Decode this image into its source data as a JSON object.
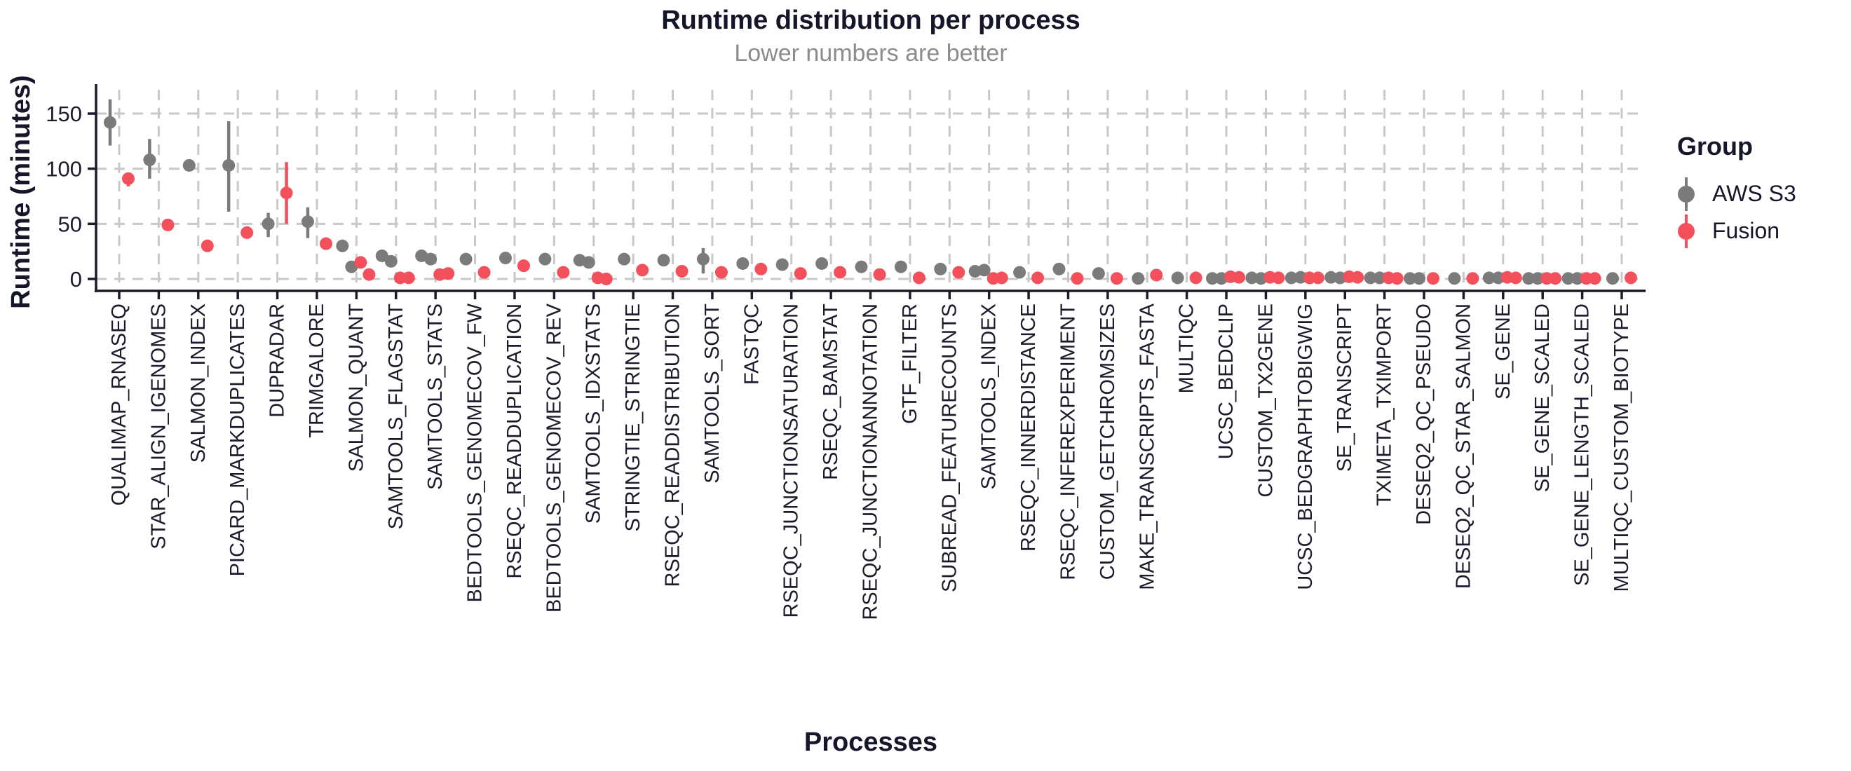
{
  "chart_data": {
    "type": "scatter",
    "title": "Runtime distribution per process",
    "subtitle": "Lower numbers are better",
    "xlabel": "Processes",
    "ylabel": "Runtime (minutes)",
    "y_ticks": [
      0,
      50,
      100,
      150
    ],
    "ylim": [
      0,
      170
    ],
    "grid": "dashed major gridlines horizontal and per-category vertical",
    "legend": {
      "title": "Group",
      "position": "right",
      "entries": [
        {
          "label": "AWS S3",
          "color": "#7b7b7b"
        },
        {
          "label": "Fusion",
          "color": "#f4505c"
        }
      ]
    },
    "series_colors": {
      "aws_s3": "#7b7b7b",
      "fusion": "#f4505c"
    },
    "point_unit": "minutes",
    "processes": [
      {
        "name": "QUALIMAP_RNASEQ",
        "aws_s3": [
          {
            "v": 142,
            "lo": 121,
            "hi": 163
          }
        ],
        "fusion": [
          {
            "v": 91,
            "lo": 84,
            "hi": 96
          }
        ]
      },
      {
        "name": "STAR_ALIGN_IGENOMES",
        "aws_s3": [
          {
            "v": 108,
            "lo": 91,
            "hi": 127
          }
        ],
        "fusion": [
          {
            "v": 49
          }
        ]
      },
      {
        "name": "SALMON_INDEX",
        "aws_s3": [
          {
            "v": 103
          }
        ],
        "fusion": [
          {
            "v": 30
          }
        ]
      },
      {
        "name": "PICARD_MARKDUPLICATES",
        "aws_s3": [
          {
            "v": 103,
            "lo": 61,
            "hi": 143
          }
        ],
        "fusion": [
          {
            "v": 42
          }
        ]
      },
      {
        "name": "DUPRADAR",
        "aws_s3": [
          {
            "v": 50,
            "lo": 38,
            "hi": 60
          }
        ],
        "fusion": [
          {
            "v": 78,
            "lo": 50,
            "hi": 106
          }
        ]
      },
      {
        "name": "TRIMGALORE",
        "aws_s3": [
          {
            "v": 52,
            "lo": 37,
            "hi": 65
          }
        ],
        "fusion": [
          {
            "v": 32
          }
        ]
      },
      {
        "name": "SALMON_QUANT",
        "aws_s3": [
          {
            "v": 30
          },
          {
            "v": 11
          }
        ],
        "fusion": [
          {
            "v": 15
          },
          {
            "v": 4
          }
        ]
      },
      {
        "name": "SAMTOOLS_FLAGSTAT",
        "aws_s3": [
          {
            "v": 21
          },
          {
            "v": 16
          }
        ],
        "fusion": [
          {
            "v": 1
          },
          {
            "v": 1
          }
        ]
      },
      {
        "name": "SAMTOOLS_STATS",
        "aws_s3": [
          {
            "v": 21,
            "lo": 16,
            "hi": 26
          },
          {
            "v": 18
          }
        ],
        "fusion": [
          {
            "v": 4
          },
          {
            "v": 5
          }
        ]
      },
      {
        "name": "BEDTOOLS_GENOMECOV_FW",
        "aws_s3": [
          {
            "v": 18
          }
        ],
        "fusion": [
          {
            "v": 6
          }
        ]
      },
      {
        "name": "RSEQC_READDUPLICATION",
        "aws_s3": [
          {
            "v": 19
          }
        ],
        "fusion": [
          {
            "v": 12
          }
        ]
      },
      {
        "name": "BEDTOOLS_GENOMECOV_REV",
        "aws_s3": [
          {
            "v": 18
          }
        ],
        "fusion": [
          {
            "v": 6
          }
        ]
      },
      {
        "name": "SAMTOOLS_IDXSTATS",
        "aws_s3": [
          {
            "v": 17
          },
          {
            "v": 15
          }
        ],
        "fusion": [
          {
            "v": 1
          },
          {
            "v": 0
          }
        ]
      },
      {
        "name": "STRINGTIE_STRINGTIE",
        "aws_s3": [
          {
            "v": 18
          }
        ],
        "fusion": [
          {
            "v": 8
          }
        ]
      },
      {
        "name": "RSEQC_READDISTRIBUTION",
        "aws_s3": [
          {
            "v": 17
          }
        ],
        "fusion": [
          {
            "v": 7
          }
        ]
      },
      {
        "name": "SAMTOOLS_SORT",
        "aws_s3": [
          {
            "v": 18,
            "lo": 5,
            "hi": 28
          }
        ],
        "fusion": [
          {
            "v": 6
          }
        ]
      },
      {
        "name": "FASTQC",
        "aws_s3": [
          {
            "v": 14
          }
        ],
        "fusion": [
          {
            "v": 9
          }
        ]
      },
      {
        "name": "RSEQC_JUNCTIONSATURATION",
        "aws_s3": [
          {
            "v": 13
          }
        ],
        "fusion": [
          {
            "v": 5
          }
        ]
      },
      {
        "name": "RSEQC_BAMSTAT",
        "aws_s3": [
          {
            "v": 14
          }
        ],
        "fusion": [
          {
            "v": 6
          }
        ]
      },
      {
        "name": "RSEQC_JUNCTIONANNOTATION",
        "aws_s3": [
          {
            "v": 11
          }
        ],
        "fusion": [
          {
            "v": 4
          }
        ]
      },
      {
        "name": "GTF_FILTER",
        "aws_s3": [
          {
            "v": 11
          }
        ],
        "fusion": [
          {
            "v": 1
          }
        ]
      },
      {
        "name": "SUBREAD_FEATURECOUNTS",
        "aws_s3": [
          {
            "v": 9
          }
        ],
        "fusion": [
          {
            "v": 6
          }
        ]
      },
      {
        "name": "SAMTOOLS_INDEX",
        "aws_s3": [
          {
            "v": 7
          },
          {
            "v": 8
          }
        ],
        "fusion": [
          {
            "v": 0.5
          },
          {
            "v": 1
          }
        ]
      },
      {
        "name": "RSEQC_INNERDISTANCE",
        "aws_s3": [
          {
            "v": 6
          }
        ],
        "fusion": [
          {
            "v": 1
          }
        ]
      },
      {
        "name": "RSEQC_INFEREXPERIMENT",
        "aws_s3": [
          {
            "v": 9
          }
        ],
        "fusion": [
          {
            "v": 0.5
          }
        ]
      },
      {
        "name": "CUSTOM_GETCHROMSIZES",
        "aws_s3": [
          {
            "v": 5
          }
        ],
        "fusion": [
          {
            "v": 0.5
          }
        ]
      },
      {
        "name": "MAKE_TRANSCRIPTS_FASTA",
        "aws_s3": [
          {
            "v": 0.5
          }
        ],
        "fusion": [
          {
            "v": 3.5
          }
        ]
      },
      {
        "name": "MULTIQC",
        "aws_s3": [
          {
            "v": 1
          }
        ],
        "fusion": [
          {
            "v": 1
          }
        ]
      },
      {
        "name": "UCSC_BEDCLIP",
        "aws_s3": [
          {
            "v": 0.5
          },
          {
            "v": 0.5
          }
        ],
        "fusion": [
          {
            "v": 2
          },
          {
            "v": 1.5
          }
        ]
      },
      {
        "name": "CUSTOM_TX2GENE",
        "aws_s3": [
          {
            "v": 1
          },
          {
            "v": 0.5
          }
        ],
        "fusion": [
          {
            "v": 1.5
          },
          {
            "v": 1
          }
        ]
      },
      {
        "name": "UCSC_BEDGRAPHTOBIGWIG",
        "aws_s3": [
          {
            "v": 1
          },
          {
            "v": 1.5
          }
        ],
        "fusion": [
          {
            "v": 1
          },
          {
            "v": 1
          }
        ]
      },
      {
        "name": "SE_TRANSCRIPT",
        "aws_s3": [
          {
            "v": 1.5
          },
          {
            "v": 1
          }
        ],
        "fusion": [
          {
            "v": 2
          },
          {
            "v": 1.5
          }
        ]
      },
      {
        "name": "TXIMETA_TXIMPORT",
        "aws_s3": [
          {
            "v": 1
          },
          {
            "v": 1
          }
        ],
        "fusion": [
          {
            "v": 1
          },
          {
            "v": 0.5
          }
        ]
      },
      {
        "name": "DESEQ2_QC_PSEUDO",
        "aws_s3": [
          {
            "v": 0.5
          },
          {
            "v": 0.5
          }
        ],
        "fusion": [
          {
            "v": 0.5
          }
        ]
      },
      {
        "name": "DESEQ2_QC_STAR_SALMON",
        "aws_s3": [
          {
            "v": 0.5
          }
        ],
        "fusion": [
          {
            "v": 0.5
          }
        ]
      },
      {
        "name": "SE_GENE",
        "aws_s3": [
          {
            "v": 1
          },
          {
            "v": 1
          }
        ],
        "fusion": [
          {
            "v": 1.5
          },
          {
            "v": 1
          }
        ]
      },
      {
        "name": "SE_GENE_SCALED",
        "aws_s3": [
          {
            "v": 0.5
          },
          {
            "v": 0.5
          }
        ],
        "fusion": [
          {
            "v": 0.5
          },
          {
            "v": 0.5
          }
        ]
      },
      {
        "name": "SE_GENE_LENGTH_SCALED",
        "aws_s3": [
          {
            "v": 0.5
          },
          {
            "v": 0.5
          }
        ],
        "fusion": [
          {
            "v": 0.5
          },
          {
            "v": 0.5
          }
        ]
      },
      {
        "name": "MULTIQC_CUSTOM_BIOTYPE",
        "aws_s3": [
          {
            "v": 0.5
          }
        ],
        "fusion": [
          {
            "v": 1
          }
        ]
      }
    ]
  }
}
